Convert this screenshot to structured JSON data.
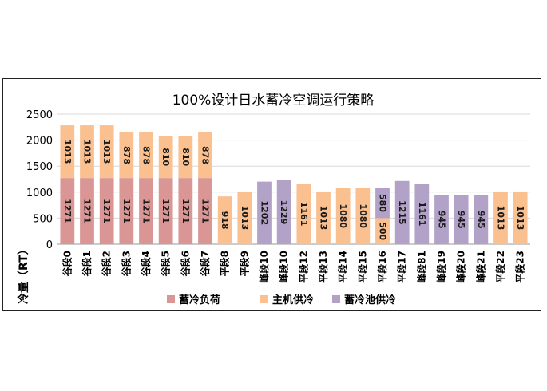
{
  "chart_data": {
    "type": "bar",
    "stacked": true,
    "title": "100%设计日水蓄冷空调运行策略",
    "ylabel": "冷量（RT）",
    "xlabel": "",
    "ylim": [
      0,
      2500
    ],
    "yticks": [
      0,
      500,
      1000,
      1500,
      2000,
      2500
    ],
    "grid": true,
    "legend_position": "bottom",
    "categories": [
      "谷段0",
      "谷段1",
      "谷段2",
      "谷段3",
      "谷段4",
      "谷段5",
      "谷段6",
      "谷段7",
      "平段8",
      "平段9",
      "峰段10",
      "峰段10",
      "平段12",
      "平段13",
      "平段14",
      "平段15",
      "平段16",
      "平段17",
      "峰段81",
      "峰段19",
      "峰段20",
      "峰段21",
      "平段22",
      "平段23"
    ],
    "series": [
      {
        "name": "蓄冷负荷",
        "color": "#d99694",
        "values": [
          1271,
          1271,
          1271,
          1271,
          1271,
          1271,
          1271,
          1271,
          0,
          0,
          0,
          0,
          0,
          0,
          0,
          0,
          0,
          0,
          0,
          0,
          0,
          0,
          0,
          0
        ]
      },
      {
        "name": "主机供冷",
        "color": "#fac090",
        "values": [
          1013,
          1013,
          1013,
          878,
          878,
          810,
          810,
          878,
          918,
          1013,
          0,
          0,
          1161,
          1013,
          1080,
          1080,
          500,
          0,
          0,
          0,
          0,
          0,
          1013,
          1013
        ]
      },
      {
        "name": "蓄冷池供冷",
        "color": "#b3a2c7",
        "values": [
          0,
          0,
          0,
          0,
          0,
          0,
          0,
          0,
          0,
          0,
          1202,
          1229,
          0,
          0,
          0,
          0,
          580,
          1215,
          1161,
          945,
          945,
          945,
          0,
          0
        ]
      }
    ]
  }
}
